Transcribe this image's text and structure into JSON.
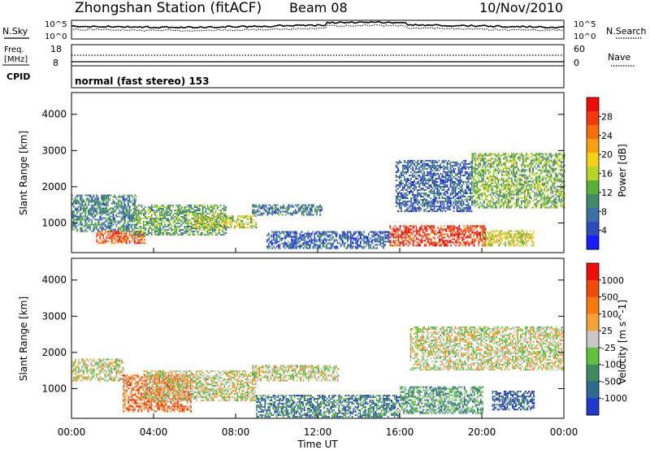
{
  "header": {
    "title": "Zhongshan Station (fitACF)",
    "beam": "Beam 08",
    "date": "10/Nov/2010"
  },
  "top_panels": {
    "nsky_label": "N.Sky",
    "nsearch_label": "N.Search",
    "count_ticks_left": [
      "10^5",
      "10^0"
    ],
    "count_ticks_right": [
      "10^5",
      "10^0"
    ],
    "freq_label_line1": "Freq.",
    "freq_label_line2": "[MHz]",
    "freq_ticks": [
      "18",
      "8"
    ],
    "nave_label": "Nave",
    "nave_ticks": [
      "60",
      "0"
    ],
    "cpid_label": "CPID",
    "cpid_text": "normal (fast stereo) 153"
  },
  "chart_data": [
    {
      "type": "heatmap",
      "quantity": "Power",
      "colorbar_label": "Power [dB]",
      "ylabel": "Slant Range [km]",
      "ylim": [
        180,
        4600
      ],
      "y_ticks": [
        "1000",
        "2000",
        "3000",
        "4000"
      ],
      "xlim": [
        0,
        24
      ],
      "colorbar_ticks": [
        "28",
        "24",
        "20",
        "16",
        "12",
        "8",
        "4"
      ],
      "colorbar_colors": [
        "#1b1bff",
        "#2c4cbb",
        "#3c6fa8",
        "#3f8a68",
        "#58b038",
        "#b8d428",
        "#f3d217",
        "#f7a014",
        "#f46d10",
        "#f23a0c",
        "#ee0a08"
      ],
      "regions": [
        {
          "t": [
            0.0,
            3.2
          ],
          "r": [
            750,
            1750
          ],
          "level": 0.28
        },
        {
          "t": [
            1.2,
            3.6
          ],
          "r": [
            420,
            760
          ],
          "level": 0.82
        },
        {
          "t": [
            3.0,
            7.5
          ],
          "r": [
            650,
            1500
          ],
          "level": 0.38
        },
        {
          "t": [
            6.0,
            9.0
          ],
          "r": [
            850,
            1200
          ],
          "level": 0.5
        },
        {
          "t": [
            8.8,
            12.2
          ],
          "r": [
            1200,
            1500
          ],
          "level": 0.25
        },
        {
          "t": [
            9.5,
            15.5
          ],
          "r": [
            280,
            750
          ],
          "level": 0.2
        },
        {
          "t": [
            15.5,
            20.2
          ],
          "r": [
            350,
            920
          ],
          "level": 0.88
        },
        {
          "t": [
            15.8,
            19.5
          ],
          "r": [
            1300,
            2700
          ],
          "level": 0.2
        },
        {
          "t": [
            19.5,
            24.0
          ],
          "r": [
            1400,
            2900
          ],
          "level": 0.42
        },
        {
          "t": [
            20.0,
            22.5
          ],
          "r": [
            350,
            800
          ],
          "level": 0.55
        }
      ]
    },
    {
      "type": "heatmap",
      "quantity": "Velocity",
      "colorbar_label": "Velocity [m s^-1]",
      "ylabel": "Slant Range [km]",
      "ylim": [
        180,
        4600
      ],
      "y_ticks": [
        "1000",
        "2000",
        "3000",
        "4000"
      ],
      "xlim": [
        0,
        24
      ],
      "colorbar_ticks": [
        "1000",
        "500",
        "100",
        "25",
        "-25",
        "-100",
        "-500",
        "-1000"
      ],
      "colorbar_colors": [
        "#2139c8",
        "#2d6a8e",
        "#3f8a60",
        "#5fc23e",
        "#c7c7c7",
        "#f6a23a",
        "#f57b10",
        "#f04a0b",
        "#ee1008"
      ],
      "regions": [
        {
          "t": [
            0.0,
            2.5
          ],
          "r": [
            1200,
            1800
          ],
          "level": 0.5
        },
        {
          "t": [
            2.5,
            5.8
          ],
          "r": [
            350,
            1350
          ],
          "level": 0.78
        },
        {
          "t": [
            3.5,
            9.0
          ],
          "r": [
            650,
            1500
          ],
          "level": 0.5
        },
        {
          "t": [
            8.8,
            13.0
          ],
          "r": [
            1200,
            1650
          ],
          "level": 0.5
        },
        {
          "t": [
            9.0,
            16.0
          ],
          "r": [
            200,
            800
          ],
          "level": 0.22
        },
        {
          "t": [
            16.0,
            20.0
          ],
          "r": [
            300,
            1050
          ],
          "level": 0.3
        },
        {
          "t": [
            16.5,
            24.0
          ],
          "r": [
            1500,
            2700
          ],
          "level": 0.5
        },
        {
          "t": [
            20.5,
            22.5
          ],
          "r": [
            400,
            900
          ],
          "level": 0.12
        }
      ]
    }
  ],
  "x_axis": {
    "ticks": [
      "00:00",
      "04:00",
      "08:00",
      "12:00",
      "16:00",
      "20:00",
      "00:00"
    ],
    "label": "Time UT"
  }
}
